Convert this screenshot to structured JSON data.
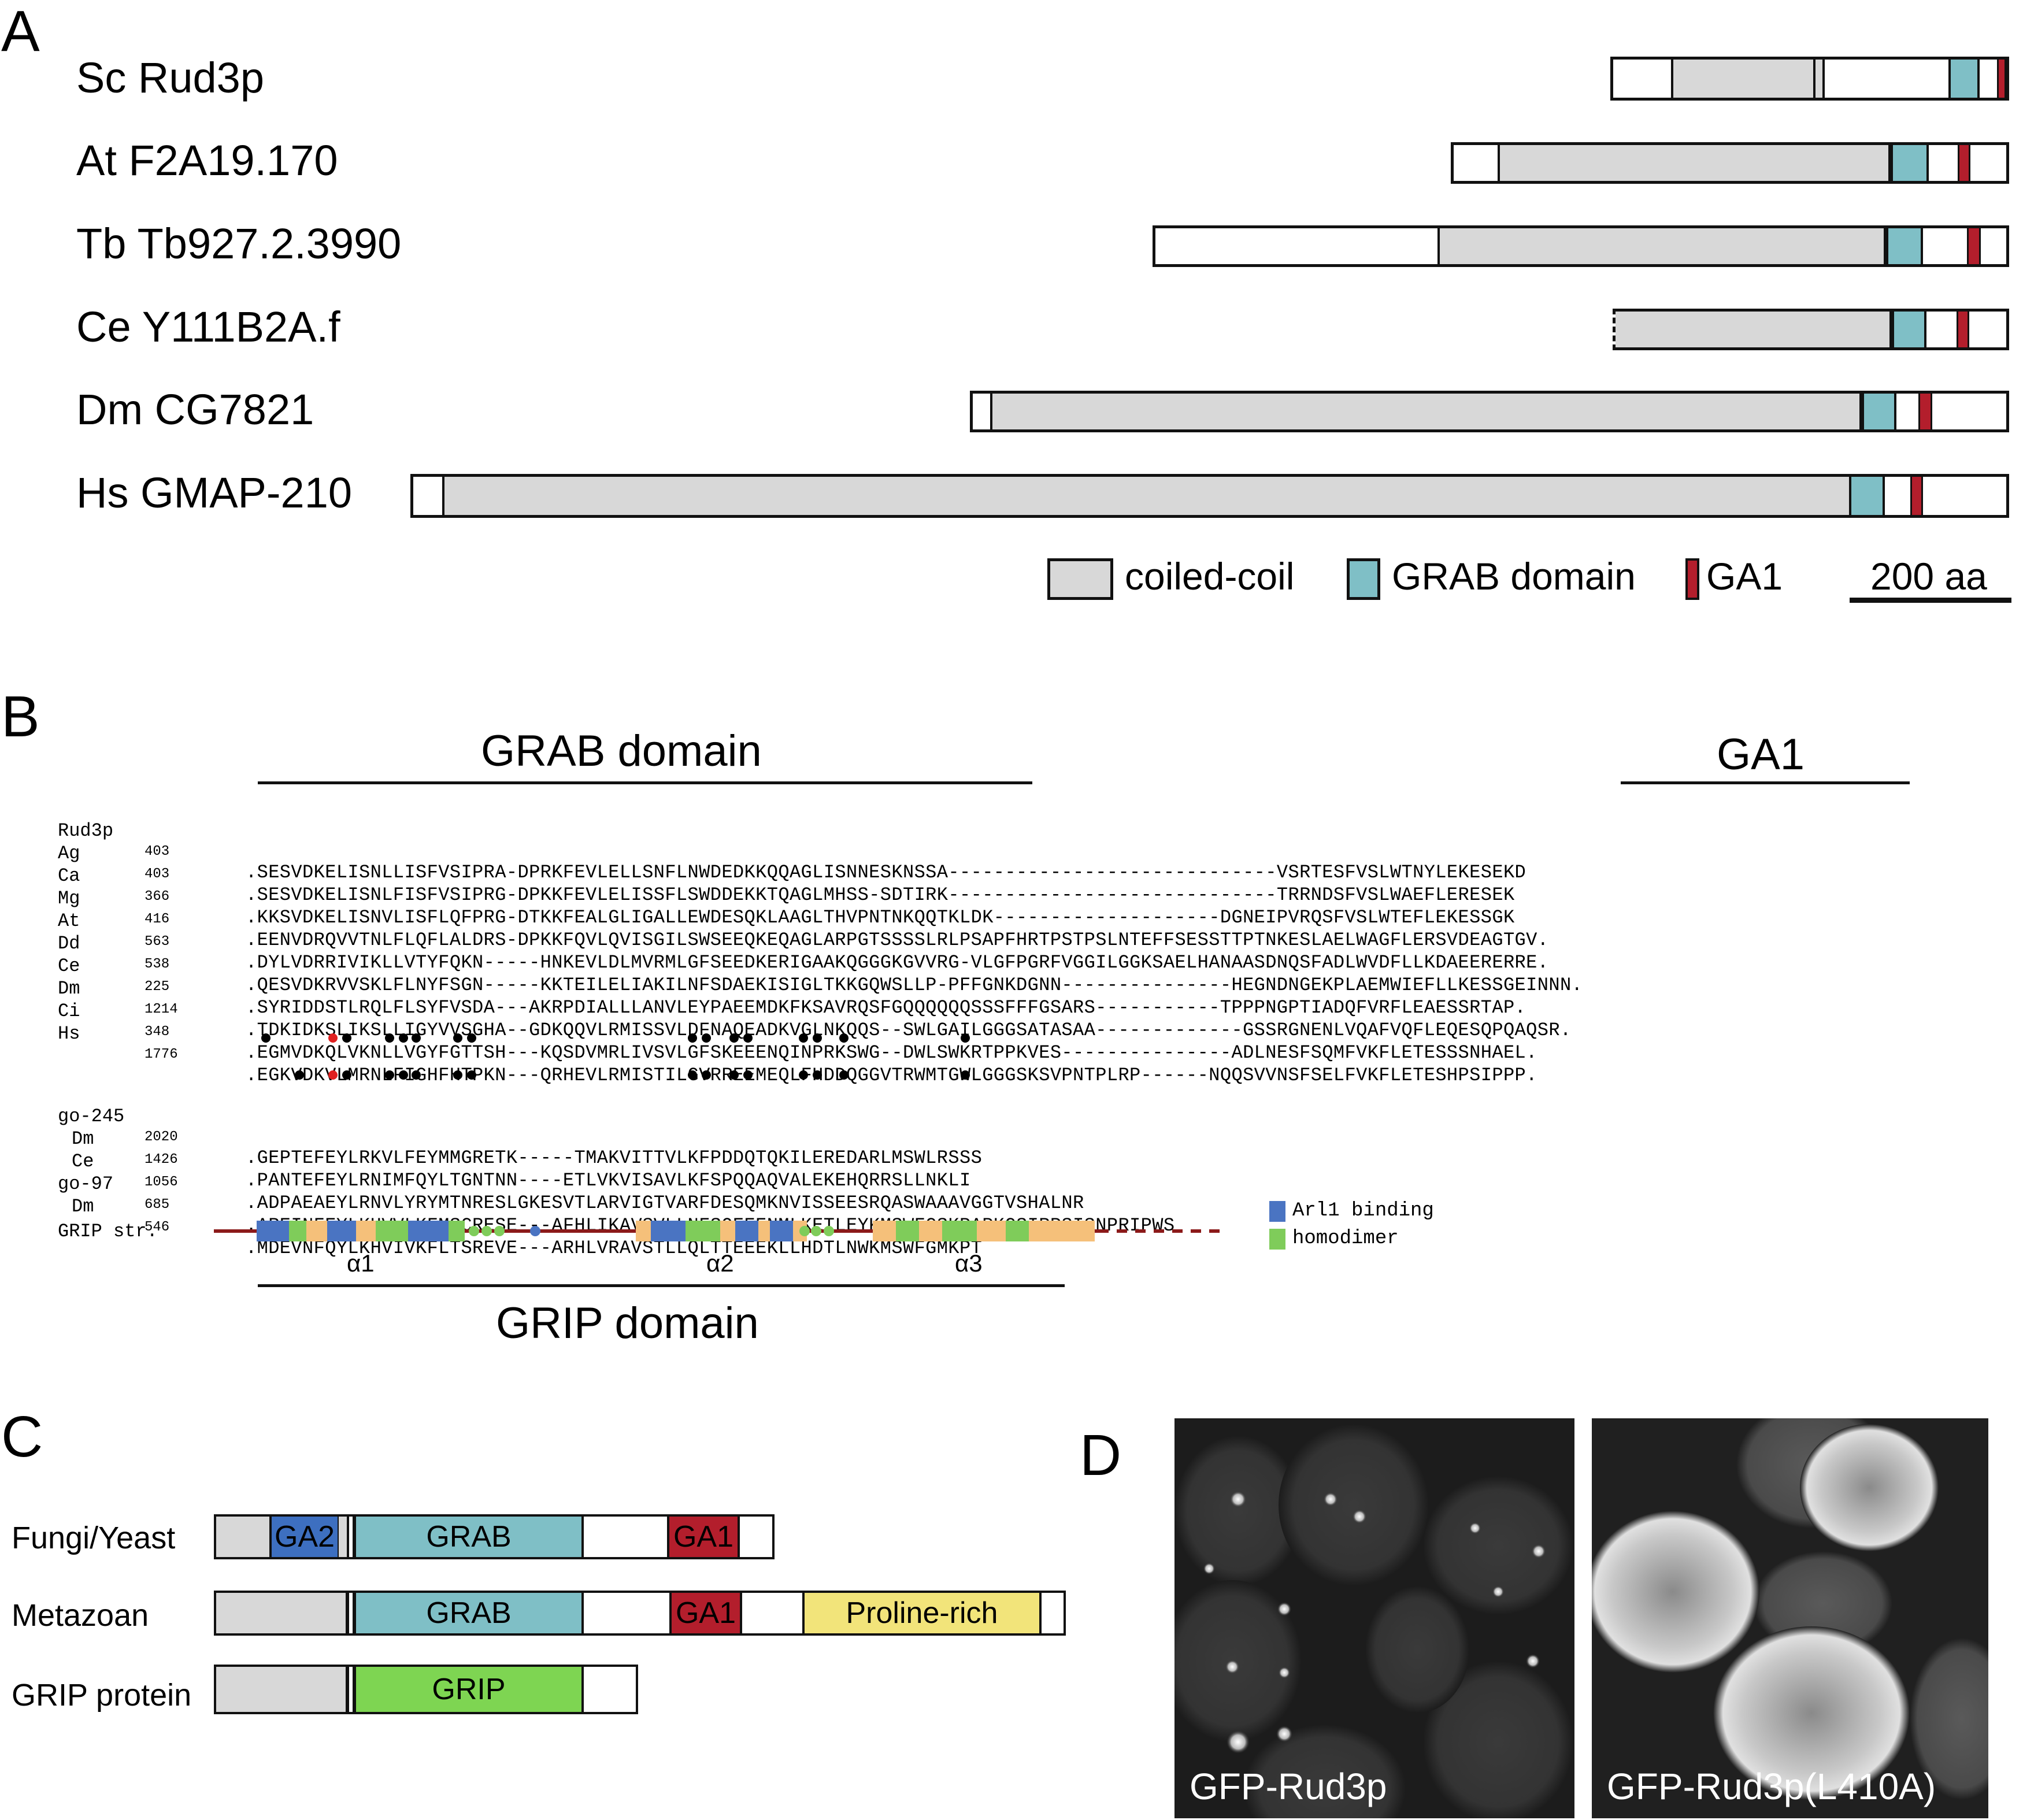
{
  "panel_a": {
    "letter": "A",
    "proteins": [
      {
        "label": "Sc Rud3p"
      },
      {
        "label": "At F2A19.170"
      },
      {
        "label": "Tb Tb927.2.3990"
      },
      {
        "label": "Ce Y111B2A.f"
      },
      {
        "label": "Dm CG7821"
      },
      {
        "label": "Hs GMAP-210"
      }
    ],
    "legend": {
      "coiled_coil": "coiled-coil",
      "grab_domain": "GRAB domain",
      "ga1": "GA1",
      "scale": "200 aa"
    },
    "colors": {
      "coiled_coil": "#d8d8d8",
      "grab": "#7fbfc6",
      "ga1": "#b31e2c"
    }
  },
  "panel_b": {
    "letter": "B",
    "grab_title": "GRAB domain",
    "ga1_title": "GA1",
    "alignment_top": [
      {
        "name": "Rud3p",
        "num": "403",
        "seq": ".SESVDKELISNLLISFVSIPRA-DPRKFEVLELLSNFLNWDEDKKQQAGLISNNESKNSSA-----------------------------VSRTESFVSLWTNYLEKESEKD"
      },
      {
        "name": "Ag",
        "num": "403",
        "seq": ".SESVDKELISNLFISFVSIPRG-DPKKFEVLELISSFLSWDDEKKTQAGLMHSS-SDTIRK-----------------------------TRRNDSFVSLWAEFLERESEK"
      },
      {
        "name": "Ca",
        "num": "366",
        "seq": ".KKSVDKELISNVLISFLQFPRG-DTKKFEALGLIGALLEWDESQKLAAGLTHVPNTNKQQTKLDK--------------------DGNEIPVRQSFVSLWTEFLEKESSGK"
      },
      {
        "name": "Mg",
        "num": "416",
        "seq": ".EENVDRQVVTNLFLQFLALDRS-DPKKFQVLQVISGILSWSEEQKEQAGLARPGTSSSSLRLPSAPFHRTPSTPSLNTEFFSESSTTPTNKESLAELWAGFLERSVDEAGTGV."
      },
      {
        "name": "At",
        "num": "563",
        "seq": ".DYLVDRRIVIKLLVTYFQKN-----HNKEVLDLMVRMLGFSEEDKERIGAAKQGGGKGVVRG-VLGFPGRFVGGILGGKSAELHANAASDNQSFADLWVDFLLKDAEERERRE."
      },
      {
        "name": "Dd",
        "num": "538",
        "seq": ".QESVDKRVVSKLFLNYFSGN-----KKTEILELIAKILNFSDAEKISIGLTKKGQWSLLP-PFFGNKDGNN---------------HEGNDNGEKPLAEMWIEFLLKESSGEINNN."
      },
      {
        "name": "Ce",
        "num": "225",
        "seq": ".SYRIDDSTLRQLFLSYFVSDA---AKRPDIALLLANVLEYPAEEMDKFKSAVRQSFGQQQQQQSSSFFFGSARS-----------TPPPNGPTIADQFVRFLEAESSRTAP."
      },
      {
        "name": "Dm",
        "num": "1214",
        "seq": ".TDKIDKSLIKSLLIGYVVSGHA--GDKQQVLRMISSVLDFNAQEADKVGLNKQQS--SWLGAILGGGSATASAA-------------GSSRGNENLVQAFVQFLEQESQPQAQSR."
      },
      {
        "name": "Ci",
        "num": "348",
        "seq": ".EGMVDKQLVKNLLVGYFGTTSH---KQSDVMRLIVSVLGFSKEEENQINPRKSWG--DWLSWKRTPPKVES---------------ADLNESFSQMFVKFLETESSSNHAEL."
      },
      {
        "name": "Hs",
        "num": "1776",
        "seq": ".EGKVDKVLMRNLFIGHFHTPKN---QRHEVLRMISTILGVRREEMEQLFHDDQGGVTRWMTGWLGGGSKSVPNTPLRP------NQQSVVNSFSELFVKFLETESHPSIPPP."
      }
    ],
    "alignment_bottom": [
      {
        "name": "go-245",
        "num": "2020",
        "seq": ".GEPTEFEYLRKVLFEYMMGRETK-----TMAKVITTVLKFPDDQTQKILEREDARLMSWLRSSS"
      },
      {
        "name": "Dm",
        "num": "1426",
        "seq": ".PANTEFEYLRNIMFQYLTGNTNN----ETLVKVISAVLKFSPQQAQVALEKEHQRRSLLNKLI"
      },
      {
        "name": "Ce",
        "num": "1056",
        "seq": ".ADPAEAEYLRNVLYRYMTNRESLGKESVTLARVIGTVARFDESQMKNVISSEESRQASWAAAVGGTVSHALNR"
      },
      {
        "name": "go-97",
        "num": "685",
        "seq": ".AREINFEYLKHVVLKFMSCRESE---AFHLIKAVSVLLNFSQEEENMLKETLEYKMSWFGSKPAPKGSIRPSISNPRIPWS"
      },
      {
        "name": "Dm",
        "num": "546",
        "seq": ".MDEVNFQYLKHVIVKFLTSREVE---ARHLVRAVSTLLQLTTEEEKLLHDTLNWKMSWFGMKPT"
      }
    ],
    "grip_label": "GRIP str.",
    "helices": [
      "α1",
      "α2",
      "α3"
    ],
    "grip_title": "GRIP domain",
    "legend": {
      "arl1": "Arl1 binding",
      "homodimer": "homodimer"
    },
    "colors": {
      "arl1": "#4a74c2",
      "homodimer": "#7fcc5a",
      "helix": "#f5c07a",
      "line": "#8b1a1a",
      "highlight": "#f08a6e"
    }
  },
  "panel_c": {
    "letter": "C",
    "rows": [
      {
        "label": "Fungi/Yeast",
        "domains": [
          "GA2",
          "GRAB",
          "GA1"
        ]
      },
      {
        "label": "Metazoan",
        "domains": [
          "GRAB",
          "GA1",
          "Proline-rich"
        ]
      },
      {
        "label": "GRIP protein",
        "domains": [
          "GRIP"
        ]
      }
    ],
    "colors": {
      "ga2": "#3d6fc0",
      "grab": "#7fbfc6",
      "ga1": "#b31e2c",
      "proline": "#f2e47a",
      "grip": "#7ed552",
      "grey": "#d8d8d8"
    }
  },
  "panel_d": {
    "letter": "D",
    "images": [
      {
        "label": "GFP-Rud3p"
      },
      {
        "label": "GFP-Rud3p(L410A)"
      }
    ]
  }
}
